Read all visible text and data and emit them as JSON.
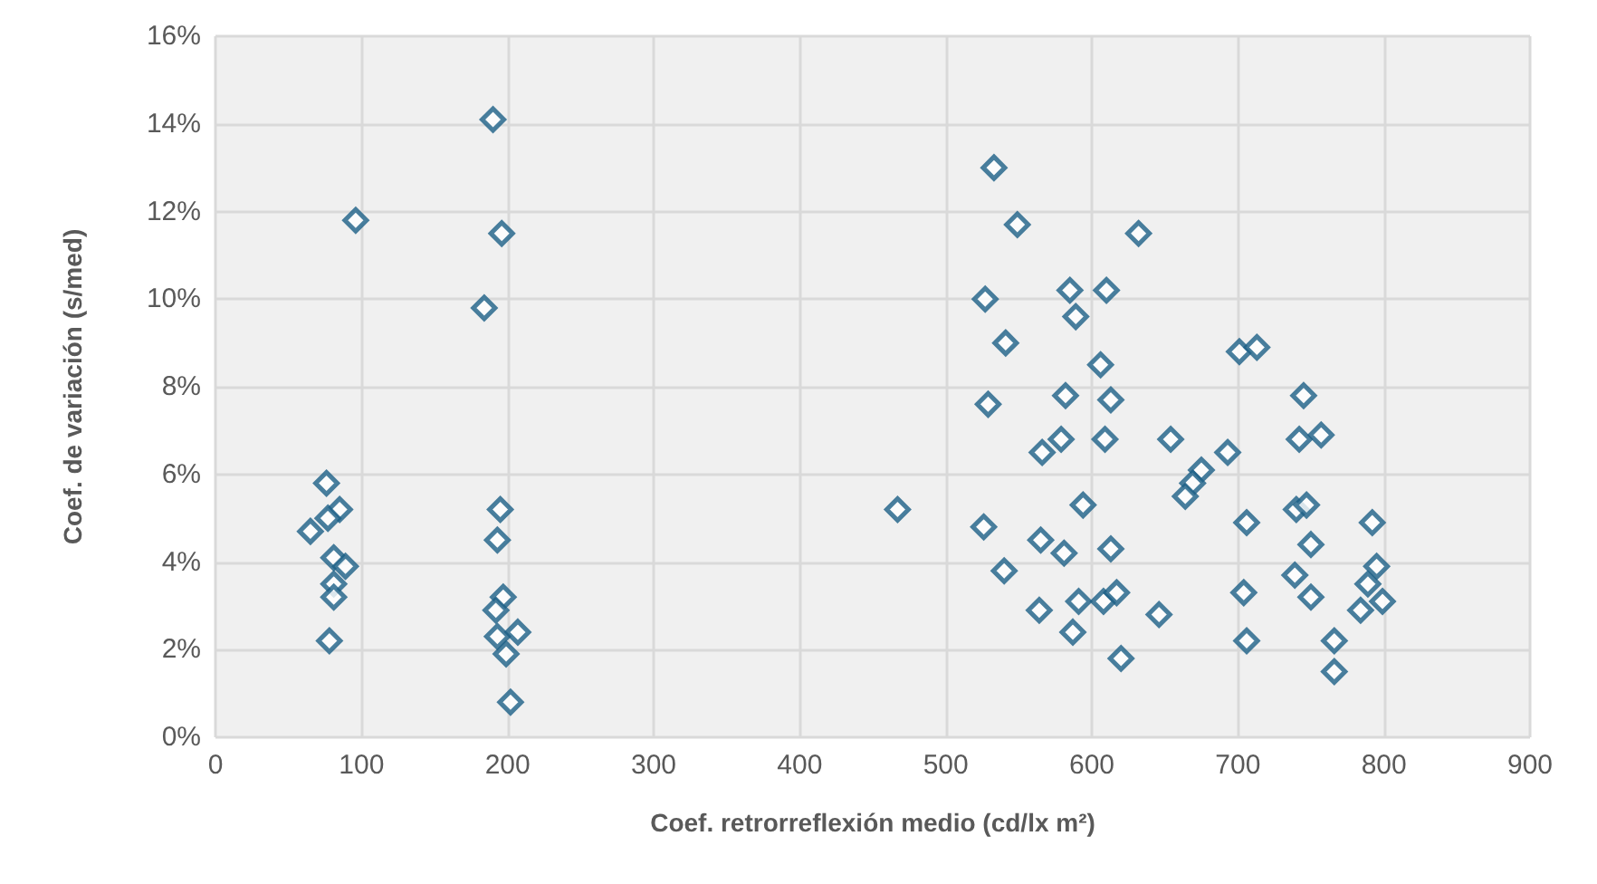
{
  "chart_data": {
    "type": "scatter",
    "xlabel": "Coef. retrorreflexión medio (cd/lx m²)",
    "ylabel": "Coef. de variación (s/med)",
    "x": [
      190,
      96,
      196,
      184,
      76,
      85,
      77,
      65,
      81,
      89,
      81,
      81,
      78,
      195,
      193,
      197,
      192,
      207,
      193,
      199,
      202,
      533,
      549,
      632,
      527,
      585,
      610,
      589,
      541,
      606,
      529,
      582,
      613,
      579,
      566,
      609,
      654,
      467,
      594,
      526,
      565,
      581,
      613,
      540,
      564,
      591,
      608,
      617,
      646,
      587,
      620,
      701,
      713,
      745,
      693,
      742,
      757,
      675,
      669,
      664,
      706,
      740,
      747,
      750,
      792,
      739,
      704,
      750,
      795,
      789,
      799,
      784,
      706,
      766,
      766
    ],
    "values": [
      14.1,
      11.8,
      11.5,
      9.8,
      5.8,
      5.2,
      5.0,
      4.7,
      4.1,
      3.9,
      3.5,
      3.2,
      2.2,
      5.2,
      4.5,
      3.2,
      2.9,
      2.4,
      2.3,
      1.9,
      0.8,
      13.0,
      11.7,
      11.5,
      10.0,
      10.2,
      10.2,
      9.6,
      9.0,
      8.5,
      7.6,
      7.8,
      7.7,
      6.8,
      6.5,
      6.8,
      6.8,
      5.2,
      5.3,
      4.8,
      4.5,
      4.2,
      4.3,
      3.8,
      2.9,
      3.1,
      3.1,
      3.3,
      2.8,
      2.4,
      1.8,
      8.8,
      8.9,
      7.8,
      6.5,
      6.8,
      6.9,
      6.1,
      5.8,
      5.5,
      4.9,
      5.2,
      5.3,
      4.4,
      4.9,
      3.7,
      3.3,
      3.2,
      3.9,
      3.5,
      3.1,
      2.9,
      2.2,
      2.2,
      1.5
    ],
    "color": "#1b5f86",
    "marker": "diamond",
    "grid": true,
    "xlim": [
      0,
      900
    ],
    "xticks": [
      0,
      100,
      200,
      300,
      400,
      500,
      600,
      700,
      800,
      900
    ],
    "ylim": [
      0,
      16
    ],
    "yticks": [
      {
        "value": 0,
        "label": "0%"
      },
      {
        "value": 2,
        "label": "2%"
      },
      {
        "value": 4,
        "label": "4%"
      },
      {
        "value": 6,
        "label": "6%"
      },
      {
        "value": 8,
        "label": "8%"
      },
      {
        "value": 10,
        "label": "10%"
      },
      {
        "value": 12,
        "label": "12%"
      },
      {
        "value": 14,
        "label": "14%"
      },
      {
        "value": 16,
        "label": "16%"
      }
    ]
  }
}
